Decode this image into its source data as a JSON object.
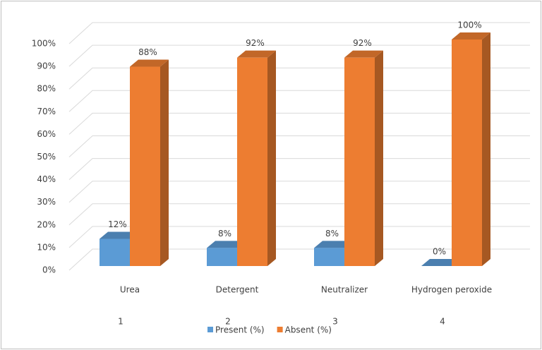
{
  "chart_data": {
    "type": "bar3d",
    "categories": [
      "Urea",
      "Detergent",
      "Neutralizer",
      "Hydrogen peroxide"
    ],
    "category_numbers": [
      "1",
      "2",
      "3",
      "4"
    ],
    "series": [
      {
        "name": "Present (%)",
        "color": "#5b9bd5",
        "values": [
          12,
          8,
          8,
          0
        ],
        "value_labels": [
          "12%",
          "8%",
          "8%",
          "0%"
        ]
      },
      {
        "name": "Absent (%)",
        "color": "#ed7d31",
        "values": [
          88,
          92,
          92,
          100
        ],
        "value_labels": [
          "88%",
          "92%",
          "92%",
          "100%"
        ]
      }
    ],
    "ylim": [
      0,
      100
    ],
    "yticks": [
      {
        "value": 0,
        "label": "0%"
      },
      {
        "value": 10,
        "label": "10%"
      },
      {
        "value": 20,
        "label": "20%"
      },
      {
        "value": 30,
        "label": "30%"
      },
      {
        "value": 40,
        "label": "40%"
      },
      {
        "value": 50,
        "label": "50%"
      },
      {
        "value": 60,
        "label": "60%"
      },
      {
        "value": 70,
        "label": "70%"
      },
      {
        "value": 80,
        "label": "80%"
      },
      {
        "value": 90,
        "label": "90%"
      },
      {
        "value": 100,
        "label": "100%"
      }
    ],
    "grid": true
  }
}
